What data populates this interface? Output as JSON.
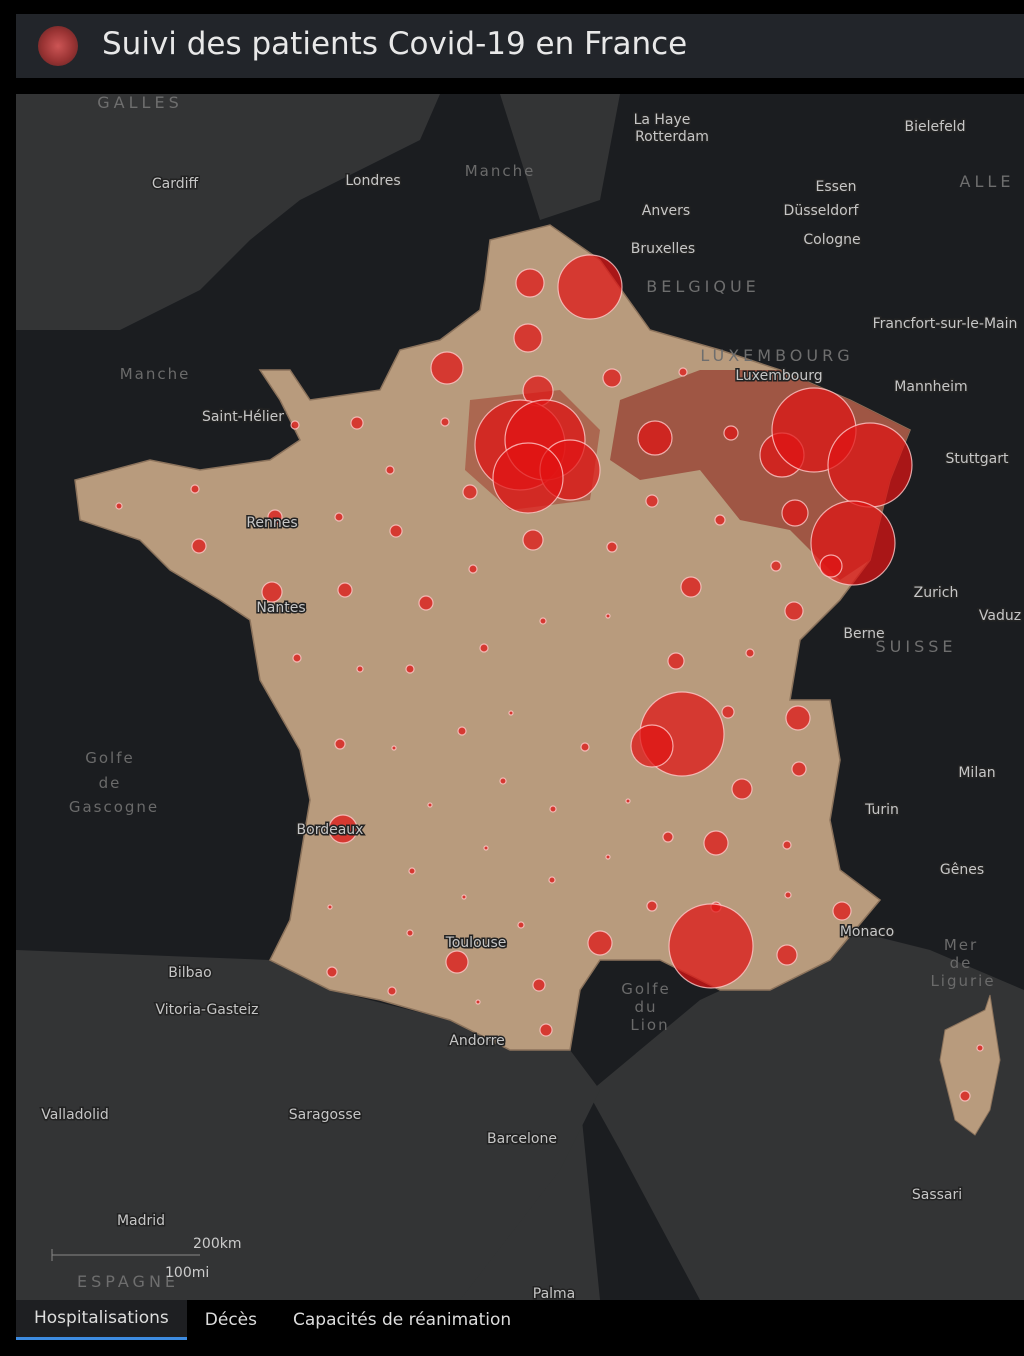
{
  "header": {
    "title": "Suivi des patients Covid-19 en France"
  },
  "map_labels": [
    "GALLES",
    "Cardiff",
    "Londres",
    "Manche",
    "La Haye",
    "Rotterdam",
    "Bielefeld",
    "Essen",
    "ALLE",
    "Anvers",
    "Düsseldorf",
    "Bruxelles",
    "Cologne",
    "BELGIQUE",
    "Francfort-sur-le-Main",
    "LUXEMBOURG",
    "Luxembourg",
    "Mannheim",
    "Manche",
    "Saint-Hélier",
    "Stuttgart",
    "Rennes",
    "Nantes",
    "Zurich",
    "Vaduz",
    "Berne",
    "SUISSE",
    "Golfe",
    "de",
    "Gascogne",
    "Milan",
    "Turin",
    "Bordeaux",
    "Gênes",
    "Monaco",
    "Mer",
    "de",
    "Ligurie",
    "Bilbao",
    "Toulouse",
    "Golfe",
    "du",
    "Lion",
    "Vitoria-Gasteiz",
    "Andorre",
    "Valladolid",
    "Saragosse",
    "Barcelone",
    "Sassari",
    "Madrid",
    "ESPAGNE",
    "Palma"
  ],
  "scale": {
    "metric": "200km",
    "imperial": "100mi"
  },
  "tabs": [
    "Hospitalisations",
    "Décès",
    "Capacités de réanimation"
  ]
}
